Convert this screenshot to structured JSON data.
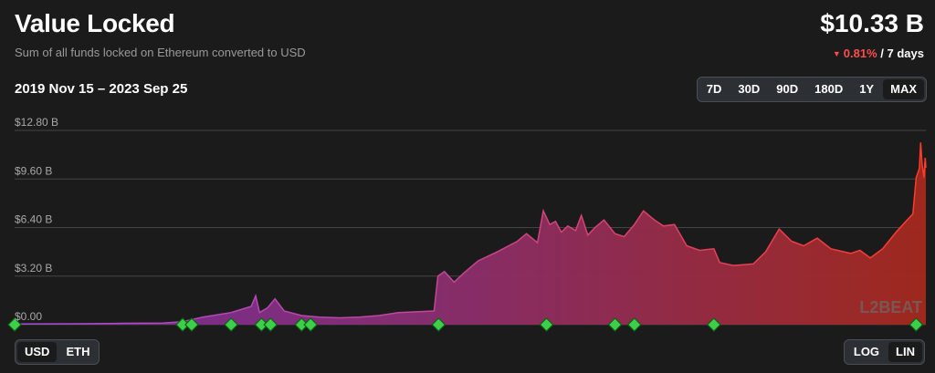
{
  "header": {
    "title": "Value Locked",
    "subtitle": "Sum of all funds locked on Ethereum converted to USD",
    "value": "$10.33 B",
    "change_pct": "0.81%",
    "change_period": "/ 7 days",
    "date_range": "2019 Nov 15 – 2023 Sep 25"
  },
  "timeframes": [
    {
      "label": "7D",
      "active": false
    },
    {
      "label": "30D",
      "active": false
    },
    {
      "label": "90D",
      "active": false
    },
    {
      "label": "180D",
      "active": false
    },
    {
      "label": "1Y",
      "active": false
    },
    {
      "label": "MAX",
      "active": true
    }
  ],
  "currency_toggle": [
    {
      "label": "USD",
      "active": true
    },
    {
      "label": "ETH",
      "active": false
    }
  ],
  "scale_toggle": [
    {
      "label": "LOG",
      "active": false
    },
    {
      "label": "LIN",
      "active": true
    }
  ],
  "watermark": "L2BEAT",
  "colors": {
    "line_start": "#b44fe0",
    "line_end": "#ff3b2a",
    "marker": "#3ecf4a",
    "negative": "#ff4d4d"
  },
  "chart_data": {
    "type": "area",
    "title": "",
    "xlabel": "",
    "ylabel": "",
    "y_tick_labels": [
      "$0.00",
      "$3.20 B",
      "$6.40 B",
      "$9.60 B",
      "$12.80 B"
    ],
    "y_ticks": [
      0,
      3.2,
      6.4,
      9.6,
      12.8
    ],
    "ylim": [
      0,
      12.8
    ],
    "xlim": [
      "2019-11-15",
      "2023-09-25"
    ],
    "grid": true,
    "unit": "B USD",
    "series": [
      {
        "values": [
          [
            "2019-11-15",
            0.05
          ],
          [
            "2020-03-01",
            0.06
          ],
          [
            "2020-05-01",
            0.09
          ],
          [
            "2020-07-01",
            0.1
          ],
          [
            "2020-08-01",
            0.2
          ],
          [
            "2020-09-01",
            0.5
          ],
          [
            "2020-10-15",
            0.8
          ],
          [
            "2020-11-15",
            1.2
          ],
          [
            "2020-11-22",
            1.9
          ],
          [
            "2020-11-28",
            0.8
          ],
          [
            "2020-12-10",
            1.1
          ],
          [
            "2020-12-22",
            1.7
          ],
          [
            "2021-01-05",
            0.9
          ],
          [
            "2021-02-01",
            0.6
          ],
          [
            "2021-03-01",
            0.5
          ],
          [
            "2021-04-01",
            0.45
          ],
          [
            "2021-05-01",
            0.5
          ],
          [
            "2021-06-01",
            0.6
          ],
          [
            "2021-07-01",
            0.8
          ],
          [
            "2021-08-25",
            0.9
          ],
          [
            "2021-08-31",
            3.2
          ],
          [
            "2021-09-10",
            3.5
          ],
          [
            "2021-09-25",
            2.8
          ],
          [
            "2021-10-10",
            3.4
          ],
          [
            "2021-11-01",
            4.2
          ],
          [
            "2021-12-01",
            4.8
          ],
          [
            "2022-01-01",
            5.5
          ],
          [
            "2022-01-15",
            6.0
          ],
          [
            "2022-02-01",
            5.4
          ],
          [
            "2022-02-10",
            7.5
          ],
          [
            "2022-02-20",
            6.6
          ],
          [
            "2022-03-01",
            6.8
          ],
          [
            "2022-03-10",
            6.1
          ],
          [
            "2022-03-20",
            6.5
          ],
          [
            "2022-04-01",
            6.2
          ],
          [
            "2022-04-10",
            7.2
          ],
          [
            "2022-04-20",
            5.9
          ],
          [
            "2022-05-01",
            6.4
          ],
          [
            "2022-05-15",
            6.9
          ],
          [
            "2022-06-01",
            6.0
          ],
          [
            "2022-06-15",
            5.8
          ],
          [
            "2022-07-01",
            6.6
          ],
          [
            "2022-07-15",
            7.5
          ],
          [
            "2022-08-01",
            6.9
          ],
          [
            "2022-08-15",
            6.5
          ],
          [
            "2022-09-01",
            6.6
          ],
          [
            "2022-09-20",
            5.2
          ],
          [
            "2022-10-10",
            4.9
          ],
          [
            "2022-11-01",
            5.0
          ],
          [
            "2022-11-10",
            4.1
          ],
          [
            "2022-12-01",
            3.9
          ],
          [
            "2023-01-01",
            4.0
          ],
          [
            "2023-01-20",
            4.8
          ],
          [
            "2023-02-10",
            6.3
          ],
          [
            "2023-03-01",
            5.5
          ],
          [
            "2023-03-20",
            5.2
          ],
          [
            "2023-04-10",
            5.7
          ],
          [
            "2023-05-01",
            5.0
          ],
          [
            "2023-06-01",
            4.7
          ],
          [
            "2023-06-15",
            4.9
          ],
          [
            "2023-07-01",
            4.4
          ],
          [
            "2023-07-20",
            5.0
          ],
          [
            "2023-08-10",
            6.1
          ],
          [
            "2023-08-25",
            6.8
          ],
          [
            "2023-09-05",
            7.3
          ],
          [
            "2023-09-10",
            9.7
          ],
          [
            "2023-09-15",
            10.3
          ],
          [
            "2023-09-17",
            12.0
          ],
          [
            "2023-09-19",
            10.6
          ],
          [
            "2023-09-21",
            10.0
          ],
          [
            "2023-09-22",
            9.7
          ],
          [
            "2023-09-23",
            10.4
          ],
          [
            "2023-09-24",
            11.0
          ],
          [
            "2023-09-25",
            10.33
          ]
        ]
      }
    ],
    "event_markers": [
      "2019-11-15",
      "2020-08-01",
      "2020-08-15",
      "2020-10-15",
      "2020-12-01",
      "2020-12-15",
      "2021-02-01",
      "2021-02-15",
      "2021-09-01",
      "2022-02-15",
      "2022-06-01",
      "2022-07-01",
      "2022-11-01",
      "2023-09-10"
    ]
  }
}
